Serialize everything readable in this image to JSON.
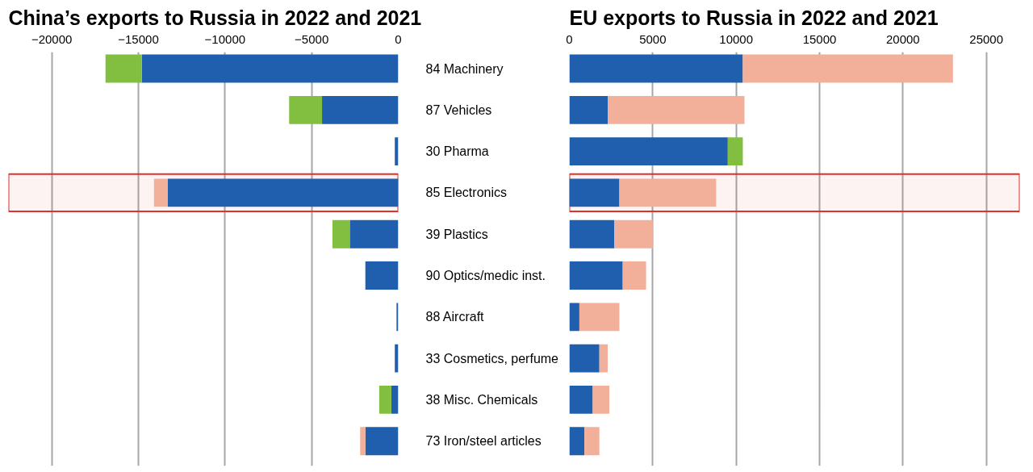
{
  "chart_data": [
    {
      "type": "bar",
      "title": "China’s exports to Russia in 2022 and 2021",
      "orientation": "horizontal",
      "stacked": true,
      "categories": [
        "84 Machinery",
        "87 Vehicles",
        "30 Pharma",
        "85 Electronics",
        "39 Plastics",
        "90 Optics/medic inst.",
        "88 Aircraft",
        "33 Cosmetics, perfume",
        "38 Misc. Chemicals",
        "73 Iron/steel articles"
      ],
      "series": [
        {
          "color": "#1f5fad",
          "values": [
            -14800,
            -4400,
            -200,
            -13300,
            -2800,
            -1900,
            -100,
            -200,
            -400,
            -1900
          ]
        },
        {
          "color": "#82be40",
          "values": [
            -2100,
            -1900,
            null,
            null,
            -1000,
            null,
            null,
            null,
            -700,
            null
          ]
        },
        {
          "color": "#f2b09a",
          "values": [
            null,
            null,
            null,
            -800,
            null,
            null,
            null,
            null,
            null,
            -300
          ]
        }
      ],
      "xlim": [
        -22500,
        0
      ],
      "xticks": [
        -20000,
        -15000,
        -10000,
        -5000,
        0
      ],
      "grid": "x",
      "bands": [
        {
          "axis": "y",
          "from": "85 Electronics",
          "to": "85 Electronics",
          "color": "#e0312a"
        }
      ]
    },
    {
      "type": "bar",
      "title": "EU exports to Russia in 2022 and 2021",
      "orientation": "horizontal",
      "stacked": true,
      "tick_labels": "x",
      "categories": [
        "84 Machinery",
        "87 Vehicles",
        "30 Pharma",
        "85 Electronics",
        "39 Plastics",
        "90 Optics/medic inst.",
        "88 Aircraft",
        "33 Cosmetics, perfume",
        "38 Misc. Chemicals",
        "73 Iron/steel articles"
      ],
      "series": [
        {
          "color": "#1f5fad",
          "values": [
            10400,
            2300,
            9500,
            3000,
            2700,
            3200,
            600,
            1800,
            1400,
            900
          ]
        },
        {
          "color": "#82be40",
          "values": [
            null,
            null,
            900,
            null,
            null,
            null,
            null,
            null,
            null,
            null
          ]
        },
        {
          "color": "#f2b09a",
          "values": [
            12600,
            8200,
            null,
            5800,
            2300,
            1400,
            2400,
            500,
            1000,
            900
          ]
        }
      ],
      "xlim": [
        0,
        27000
      ],
      "xticks": [
        0,
        5000,
        10000,
        15000,
        20000,
        25000
      ],
      "grid": "x",
      "bands": [
        {
          "axis": "y",
          "from": "85 Electronics",
          "to": "85 Electronics",
          "color": "#e0312a"
        }
      ]
    }
  ]
}
